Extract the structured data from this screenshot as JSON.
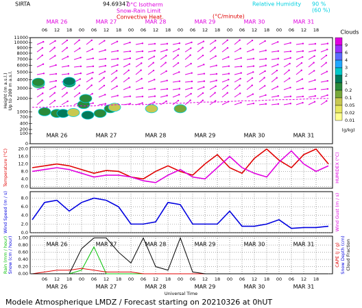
{
  "header": {
    "station": "SIRTA",
    "coords": "94.69347",
    "isotherm": "0°C Isotherm",
    "snow_rain": "Snow-Rain Limit",
    "convective": "Convective Heat.",
    "conv_unit": "(°C/minute)",
    "rh_label": "Relative Humidity",
    "rh_90": "90 %",
    "rh_60": "(60 %)"
  },
  "xlabel": "Universal Time",
  "footer": "Modele Atmospherique LMDZ / Forecast starting on 20210326 at 0hUT",
  "chart_data": [
    {
      "type": "cloud",
      "ylabel": "Height (m a.s.l.)",
      "ylabel2": "Up to 200 m a.s.l.",
      "yscale": "sqrt",
      "ylim": [
        0,
        11000
      ],
      "yticks": [
        0,
        100,
        200,
        400,
        700,
        1000,
        2000,
        3000,
        4000,
        5000,
        6000,
        7000,
        8000,
        9000,
        10000,
        11000
      ],
      "xlim": [
        -1,
        146
      ],
      "xticks": [
        {
          "value": 6,
          "label": "06"
        },
        {
          "value": 12,
          "label": "12"
        },
        {
          "value": 18,
          "label": "18"
        },
        {
          "value": 24,
          "label": "00"
        },
        {
          "value": 30,
          "label": "06"
        },
        {
          "value": 36,
          "label": "12"
        },
        {
          "value": 42,
          "label": "18"
        },
        {
          "value": 48,
          "label": "00"
        },
        {
          "value": 54,
          "label": "06"
        },
        {
          "value": 60,
          "label": "12"
        },
        {
          "value": 66,
          "label": "18"
        },
        {
          "value": 72,
          "label": "00"
        },
        {
          "value": 78,
          "label": "06"
        },
        {
          "value": 84,
          "label": "12"
        },
        {
          "value": 90,
          "label": "18"
        },
        {
          "value": 96,
          "label": "00"
        },
        {
          "value": 102,
          "label": "06"
        },
        {
          "value": 108,
          "label": "12"
        },
        {
          "value": 114,
          "label": "18"
        },
        {
          "value": 120,
          "label": "00"
        },
        {
          "value": 126,
          "label": "06"
        },
        {
          "value": 132,
          "label": "12"
        },
        {
          "value": 138,
          "label": "18"
        }
      ],
      "days": [
        {
          "value": 12,
          "label": "MAR 26"
        },
        {
          "value": 36,
          "label": "MAR 27"
        },
        {
          "value": 60,
          "label": "MAR 28"
        },
        {
          "value": 84,
          "label": "MAR 29"
        },
        {
          "value": 108,
          "label": "MAR 30"
        },
        {
          "value": 132,
          "label": "MAR 31"
        }
      ],
      "legend_title": "Clouds",
      "legend_unit": "(g/kg)",
      "levels": [
        {
          "value": 9,
          "color": "#e000e0"
        },
        {
          "value": 6,
          "color": "#9a30ff"
        },
        {
          "value": 4,
          "color": "#5a6cff"
        },
        {
          "value": 3,
          "color": "#20a8ff"
        },
        {
          "value": 2,
          "color": "#00c8c8"
        },
        {
          "value": 1,
          "color": "#007a5a"
        },
        {
          "value": 0.2,
          "color": "#2a8a3a"
        },
        {
          "value": 0.1,
          "color": "#78a83a"
        },
        {
          "value": 0.05,
          "color": "#c8c850"
        },
        {
          "value": 0.02,
          "color": "#e8e860"
        },
        {
          "value": 0.01,
          "color": "#ffff90"
        }
      ],
      "cells": [
        [
          3,
          3500,
          0.1
        ],
        [
          3,
          3700,
          0.5
        ],
        [
          18,
          3600,
          0.2
        ],
        [
          18,
          3800,
          1
        ],
        [
          6,
          1000,
          0.3
        ],
        [
          12,
          900,
          0.2
        ],
        [
          15,
          900,
          1
        ],
        [
          20,
          950,
          0.05
        ],
        [
          25,
          1500,
          0.5
        ],
        [
          26,
          2000,
          0.2
        ],
        [
          27,
          800,
          1
        ],
        [
          33,
          900,
          0.2
        ],
        [
          38,
          1200,
          0.2
        ],
        [
          40,
          1300,
          0.05
        ],
        [
          58,
          1200,
          0.05
        ],
        [
          72,
          1200,
          0.1
        ]
      ],
      "x": [
        0,
        6,
        12,
        18,
        24,
        30,
        36,
        42,
        48,
        54,
        60,
        66,
        72,
        78,
        84,
        90,
        96,
        102,
        108,
        114,
        120,
        126,
        132,
        138,
        144
      ],
      "series": [
        {
          "name": "0°C Isotherm",
          "color": "#e000e0",
          "values": [
            1300,
            1300,
            1350,
            1400,
            1400,
            1400,
            1450,
            1500,
            1500,
            1500,
            1550,
            1600,
            1600,
            1650,
            1700,
            1700,
            1750,
            1800,
            1800,
            1850,
            1900,
            1900,
            1950,
            2000,
            2000
          ]
        }
      ]
    },
    {
      "type": "line",
      "ylabel": "Temperature (°C)",
      "y2label": "HUMIDEX (°C)",
      "xlim": [
        -1,
        146
      ],
      "ylim": [
        -1,
        21
      ],
      "yticks": [
        {
          "value": 0,
          "label": "0.0"
        },
        {
          "value": 4,
          "label": "4.0"
        },
        {
          "value": 8,
          "label": "8.0"
        },
        {
          "value": 12,
          "label": "12.0"
        },
        {
          "value": 16,
          "label": "16.0"
        },
        {
          "value": 20,
          "label": "20.0"
        }
      ],
      "x": [
        0,
        6,
        12,
        18,
        24,
        30,
        36,
        42,
        48,
        54,
        60,
        66,
        72,
        78,
        84,
        90,
        96,
        102,
        108,
        114,
        120,
        126,
        132,
        138,
        144
      ],
      "series": [
        {
          "name": "Temperature",
          "color": "#e00000",
          "values": [
            10,
            11,
            12,
            11,
            9,
            7,
            8.5,
            8,
            5,
            4,
            8,
            11,
            8,
            6,
            12,
            17,
            10,
            7,
            15,
            20,
            14,
            10,
            17,
            20,
            12
          ]
        },
        {
          "name": "HUMIDEX",
          "color": "#e000e0",
          "values": [
            8,
            9,
            10,
            9,
            7,
            5,
            6,
            6,
            5,
            3,
            2,
            6,
            9,
            5,
            4,
            10,
            16,
            10,
            7,
            5,
            13,
            19,
            12,
            8,
            11
          ]
        }
      ]
    },
    {
      "type": "line",
      "ylabel": "Wind Speed (m / s)",
      "y2label": "Wind Gust (m / s)",
      "xlim": [
        -1,
        146
      ],
      "ylim": [
        0,
        9.5
      ],
      "yticks": [
        {
          "value": 0,
          "label": "0.0"
        },
        {
          "value": 2,
          "label": "2.0"
        },
        {
          "value": 4,
          "label": "4.0"
        },
        {
          "value": 6,
          "label": "6.0"
        },
        {
          "value": 8,
          "label": "8.0"
        }
      ],
      "x": [
        0,
        6,
        12,
        18,
        24,
        30,
        36,
        42,
        48,
        54,
        60,
        66,
        72,
        78,
        84,
        90,
        96,
        102,
        108,
        114,
        120,
        126,
        132,
        138,
        144
      ],
      "series": [
        {
          "name": "Wind Speed",
          "color": "#0000e0",
          "values": [
            3,
            7,
            7.5,
            5,
            7,
            8,
            7.5,
            6,
            2,
            2,
            2.5,
            7,
            6.5,
            2,
            2,
            2,
            5,
            1.5,
            1.5,
            2,
            3,
            1,
            1.2,
            1.2,
            1.5
          ]
        }
      ]
    },
    {
      "type": "line",
      "ylabel": "Rain (mm / hour)",
      "ylabel_b": "Snow (cm / hour)",
      "y2label": "CAPE (J / g)",
      "y2label_b": "Snow Depth (cm)",
      "y2label_c": "Cloud Fraction",
      "xlim": [
        -1,
        146
      ],
      "ylim": [
        0,
        1.05
      ],
      "yticks": [
        {
          "value": 0,
          "label": "0.00"
        },
        {
          "value": 0.2,
          "label": "0.20"
        },
        {
          "value": 0.4,
          "label": "0.40"
        },
        {
          "value": 0.6,
          "label": "0.60"
        },
        {
          "value": 0.8,
          "label": "0.80"
        },
        {
          "value": 1,
          "label": "1.00"
        }
      ],
      "x": [
        0,
        6,
        12,
        18,
        24,
        30,
        36,
        42,
        48,
        54,
        60,
        66,
        72,
        78,
        84,
        90,
        96,
        102,
        108,
        114,
        120,
        126,
        132,
        138,
        144
      ],
      "series": [
        {
          "name": "Rain",
          "color": "#00c000",
          "values": [
            0,
            0,
            0,
            0,
            0.1,
            0.75,
            0,
            0,
            0,
            0,
            0,
            0,
            0,
            0,
            0,
            0,
            0,
            0,
            0,
            0,
            0,
            0,
            0,
            0,
            0
          ]
        },
        {
          "name": "CAPE",
          "color": "#e00000",
          "values": [
            0,
            0.05,
            0.1,
            0.1,
            0.15,
            0.1,
            0.05,
            0.05,
            0.05,
            0,
            0,
            0,
            0,
            0,
            0,
            0,
            0,
            0,
            0,
            0,
            0,
            0,
            0,
            0,
            0
          ]
        },
        {
          "name": "Cloud Fraction",
          "color": "#000000",
          "values": [
            0,
            0,
            0,
            0,
            0.7,
            1,
            1,
            0.6,
            0.3,
            1,
            0.2,
            0.1,
            1,
            0.05,
            0,
            0,
            0,
            0,
            0,
            0,
            0,
            0,
            0,
            0,
            0
          ]
        }
      ]
    }
  ]
}
